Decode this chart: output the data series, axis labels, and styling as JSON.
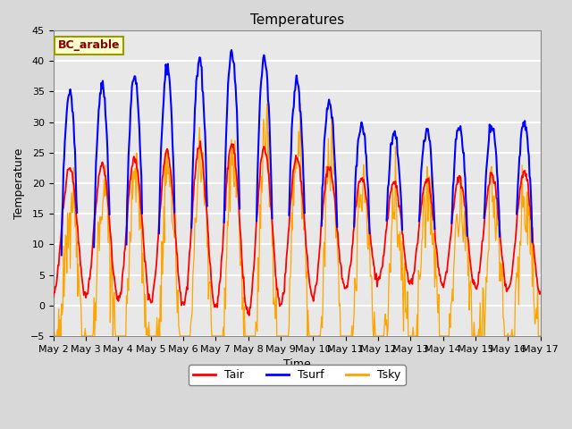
{
  "title": "Temperatures",
  "xlabel": "Time",
  "ylabel": "Temperature",
  "ylim": [
    -5,
    45
  ],
  "xtick_labels": [
    "May 2",
    "May 3",
    "May 4",
    "May 5",
    "May 6",
    "May 7",
    "May 8",
    "May 9",
    "May 10",
    "May 11",
    "May 12",
    "May 13",
    "May 14",
    "May 15",
    "May 16",
    "May 17"
  ],
  "legend_labels": [
    "Tair",
    "Tsurf",
    "Tsky"
  ],
  "line_colors": [
    "red",
    "blue",
    "orange"
  ],
  "annotation_text": "BC_arable",
  "annotation_color": "#8B0000",
  "annotation_bg": "#FFFFCC",
  "annotation_border": "#999900",
  "fig_bg": "#D8D8D8",
  "plot_bg": "#E8E8E8",
  "grid_color": "white",
  "title_fontsize": 11,
  "label_fontsize": 9,
  "tick_fontsize": 8,
  "n_points": 720,
  "days": 15
}
